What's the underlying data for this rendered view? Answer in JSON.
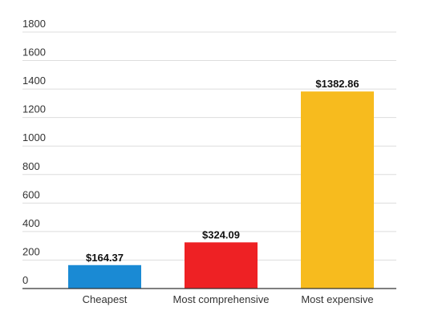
{
  "chart_data": {
    "type": "bar",
    "categories": [
      "Cheapest",
      "Most comprehensive",
      "Most expensive"
    ],
    "values": [
      164.37,
      324.09,
      1382.86
    ],
    "data_labels": [
      "$164.37",
      "$324.09",
      "$1382.86"
    ],
    "colors": [
      "#1a8ad4",
      "#ee2124",
      "#f7bb1e"
    ],
    "ylim": [
      0,
      1800
    ],
    "yticks": [
      0,
      200,
      400,
      600,
      800,
      1000,
      1200,
      1400,
      1600,
      1800
    ],
    "grid": true,
    "legend": "none",
    "title": "",
    "xlabel": "",
    "ylabel": ""
  }
}
